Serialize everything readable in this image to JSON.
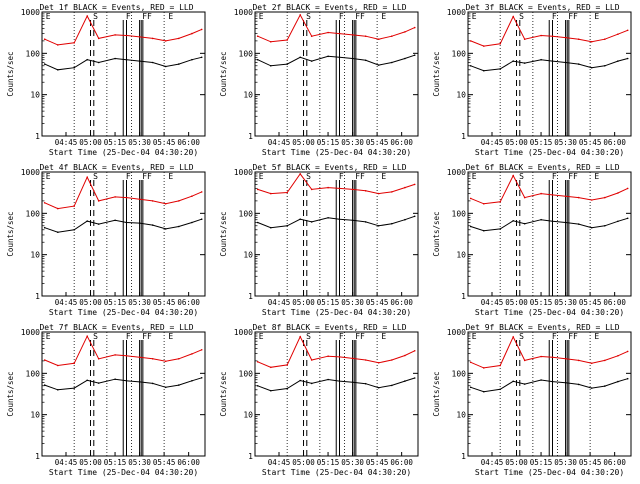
{
  "colors": {
    "events": "#000000",
    "lld": "#e00000",
    "axes": "#000000",
    "background": "#ffffff"
  },
  "shared": {
    "xlabel": "Start Time (25-Dec-04 04:30:20)",
    "ylabel": "Counts/sec",
    "x_ticks": [
      "04:45",
      "05:00",
      "05:15",
      "05:30",
      "05:45",
      "06:00"
    ],
    "y_ticks": [
      "1",
      "10",
      "100",
      "1000"
    ],
    "y_scale": "log",
    "ylim": [
      1,
      1000
    ],
    "xlim": [
      "04:30:20",
      "06:10:00"
    ],
    "marker_labels": [
      "E",
      "S",
      "F",
      "FF",
      "E"
    ]
  },
  "chart_data": [
    {
      "type": "line",
      "title": "Det 1f BLACK = Events, RED = LLD",
      "series": [
        {
          "name": "Events",
          "x": [
            "04:32",
            "04:40",
            "04:50",
            "04:58",
            "05:05",
            "05:15",
            "05:22",
            "05:30",
            "05:38",
            "05:46",
            "05:54",
            "06:02",
            "06:08"
          ],
          "values": [
            55,
            40,
            45,
            70,
            60,
            75,
            70,
            65,
            60,
            48,
            55,
            70,
            80
          ]
        },
        {
          "name": "LLD",
          "x": [
            "04:32",
            "04:40",
            "04:50",
            "04:58",
            "05:05",
            "05:15",
            "05:22",
            "05:30",
            "05:38",
            "05:46",
            "05:54",
            "06:02",
            "06:08"
          ],
          "values": [
            220,
            160,
            180,
            800,
            230,
            280,
            270,
            250,
            230,
            200,
            230,
            300,
            380
          ]
        }
      ]
    },
    {
      "type": "line",
      "title": "Det 2f BLACK = Events, RED = LLD",
      "series": [
        {
          "name": "Events",
          "x": [
            "04:32",
            "04:40",
            "04:50",
            "04:58",
            "05:05",
            "05:15",
            "05:22",
            "05:30",
            "05:38",
            "05:46",
            "05:54",
            "06:02",
            "06:08"
          ],
          "values": [
            70,
            50,
            55,
            80,
            65,
            85,
            80,
            75,
            68,
            52,
            60,
            75,
            90
          ]
        },
        {
          "name": "LLD",
          "x": [
            "04:32",
            "04:40",
            "04:50",
            "04:58",
            "05:05",
            "05:15",
            "05:22",
            "05:30",
            "05:38",
            "05:46",
            "05:54",
            "06:02",
            "06:08"
          ],
          "values": [
            260,
            190,
            210,
            850,
            260,
            320,
            300,
            280,
            260,
            220,
            260,
            330,
            420
          ]
        }
      ]
    },
    {
      "type": "line",
      "title": "Det 3f BLACK = Events, RED = LLD",
      "series": [
        {
          "name": "Events",
          "x": [
            "04:32",
            "04:40",
            "04:50",
            "04:58",
            "05:05",
            "05:15",
            "05:22",
            "05:30",
            "05:38",
            "05:46",
            "05:54",
            "06:02",
            "06:08"
          ],
          "values": [
            50,
            38,
            42,
            65,
            58,
            70,
            65,
            60,
            55,
            45,
            50,
            65,
            75
          ]
        },
        {
          "name": "LLD",
          "x": [
            "04:32",
            "04:40",
            "04:50",
            "04:58",
            "05:05",
            "05:15",
            "05:22",
            "05:30",
            "05:38",
            "05:46",
            "05:54",
            "06:02",
            "06:08"
          ],
          "values": [
            200,
            150,
            170,
            780,
            220,
            270,
            260,
            240,
            220,
            190,
            220,
            290,
            360
          ]
        }
      ]
    },
    {
      "type": "line",
      "title": "Det 4f BLACK = Events, RED = LLD",
      "series": [
        {
          "name": "Events",
          "x": [
            "04:32",
            "04:40",
            "04:50",
            "04:58",
            "05:05",
            "05:15",
            "05:22",
            "05:30",
            "05:38",
            "05:46",
            "05:54",
            "06:02",
            "06:08"
          ],
          "values": [
            45,
            35,
            40,
            65,
            55,
            68,
            60,
            58,
            52,
            42,
            48,
            60,
            72
          ]
        },
        {
          "name": "LLD",
          "x": [
            "04:32",
            "04:40",
            "04:50",
            "04:58",
            "05:05",
            "05:15",
            "05:22",
            "05:30",
            "05:38",
            "05:46",
            "05:54",
            "06:02",
            "06:08"
          ],
          "values": [
            180,
            130,
            150,
            750,
            200,
            250,
            240,
            220,
            200,
            170,
            200,
            260,
            330
          ]
        }
      ]
    },
    {
      "type": "line",
      "title": "Det 5f BLACK = Events, RED = LLD",
      "series": [
        {
          "name": "Events",
          "x": [
            "04:32",
            "04:40",
            "04:50",
            "04:58",
            "05:05",
            "05:15",
            "05:22",
            "05:30",
            "05:38",
            "05:46",
            "05:54",
            "06:02",
            "06:08"
          ],
          "values": [
            60,
            45,
            50,
            72,
            62,
            78,
            72,
            68,
            62,
            50,
            56,
            70,
            85
          ]
        },
        {
          "name": "LLD",
          "x": [
            "04:32",
            "04:40",
            "04:50",
            "04:58",
            "05:05",
            "05:15",
            "05:22",
            "05:30",
            "05:38",
            "05:46",
            "05:54",
            "06:02",
            "06:08"
          ],
          "values": [
            380,
            300,
            320,
            900,
            380,
            420,
            400,
            380,
            350,
            300,
            330,
            420,
            500
          ]
        }
      ]
    },
    {
      "type": "line",
      "title": "Det 6f BLACK = Events, RED = LLD",
      "series": [
        {
          "name": "Events",
          "x": [
            "04:32",
            "04:40",
            "04:50",
            "04:58",
            "05:05",
            "05:15",
            "05:22",
            "05:30",
            "05:38",
            "05:46",
            "05:54",
            "06:02",
            "06:08"
          ],
          "values": [
            48,
            38,
            42,
            66,
            56,
            70,
            64,
            60,
            55,
            45,
            50,
            64,
            76
          ]
        },
        {
          "name": "LLD",
          "x": [
            "04:32",
            "04:40",
            "04:50",
            "04:58",
            "05:05",
            "05:15",
            "05:22",
            "05:30",
            "05:38",
            "05:46",
            "05:54",
            "06:02",
            "06:08"
          ],
          "values": [
            230,
            170,
            190,
            820,
            240,
            300,
            280,
            260,
            240,
            210,
            240,
            310,
            400
          ]
        }
      ]
    },
    {
      "type": "line",
      "title": "Det 7f BLACK = Events, RED = LLD",
      "series": [
        {
          "name": "Events",
          "x": [
            "04:32",
            "04:40",
            "04:50",
            "04:58",
            "05:05",
            "05:15",
            "05:22",
            "05:30",
            "05:38",
            "05:46",
            "05:54",
            "06:02",
            "06:08"
          ],
          "values": [
            52,
            40,
            44,
            68,
            58,
            72,
            66,
            62,
            57,
            46,
            52,
            66,
            78
          ]
        },
        {
          "name": "LLD",
          "x": [
            "04:32",
            "04:40",
            "04:50",
            "04:58",
            "05:05",
            "05:15",
            "05:22",
            "05:30",
            "05:38",
            "05:46",
            "05:54",
            "06:02",
            "06:08"
          ],
          "values": [
            210,
            155,
            175,
            790,
            225,
            280,
            265,
            245,
            225,
            195,
            225,
            295,
            370
          ]
        }
      ]
    },
    {
      "type": "line",
      "title": "Det 8f BLACK = Events, RED = LLD",
      "series": [
        {
          "name": "Events",
          "x": [
            "04:32",
            "04:40",
            "04:50",
            "04:58",
            "05:05",
            "05:15",
            "05:22",
            "05:30",
            "05:38",
            "05:46",
            "05:54",
            "06:02",
            "06:08"
          ],
          "values": [
            50,
            38,
            43,
            67,
            57,
            71,
            65,
            61,
            56,
            45,
            51,
            65,
            77
          ]
        },
        {
          "name": "LLD",
          "x": [
            "04:32",
            "04:40",
            "04:50",
            "04:58",
            "05:05",
            "05:15",
            "05:22",
            "05:30",
            "05:38",
            "05:46",
            "05:54",
            "06:02",
            "06:08"
          ],
          "values": [
            190,
            140,
            160,
            770,
            210,
            260,
            250,
            230,
            210,
            180,
            210,
            270,
            350
          ]
        }
      ]
    },
    {
      "type": "line",
      "title": "Det 9f BLACK = Events, RED = LLD",
      "series": [
        {
          "name": "Events",
          "x": [
            "04:32",
            "04:40",
            "04:50",
            "04:58",
            "05:05",
            "05:15",
            "05:22",
            "05:30",
            "05:38",
            "05:46",
            "05:54",
            "06:02",
            "06:08"
          ],
          "values": [
            46,
            36,
            41,
            64,
            55,
            69,
            63,
            59,
            54,
            44,
            49,
            63,
            74
          ]
        },
        {
          "name": "LLD",
          "x": [
            "04:32",
            "04:40",
            "04:50",
            "04:58",
            "05:05",
            "05:15",
            "05:22",
            "05:30",
            "05:38",
            "05:46",
            "05:54",
            "06:02",
            "06:08"
          ],
          "values": [
            185,
            135,
            155,
            760,
            205,
            255,
            245,
            225,
            205,
            175,
            205,
            265,
            340
          ]
        }
      ]
    }
  ]
}
